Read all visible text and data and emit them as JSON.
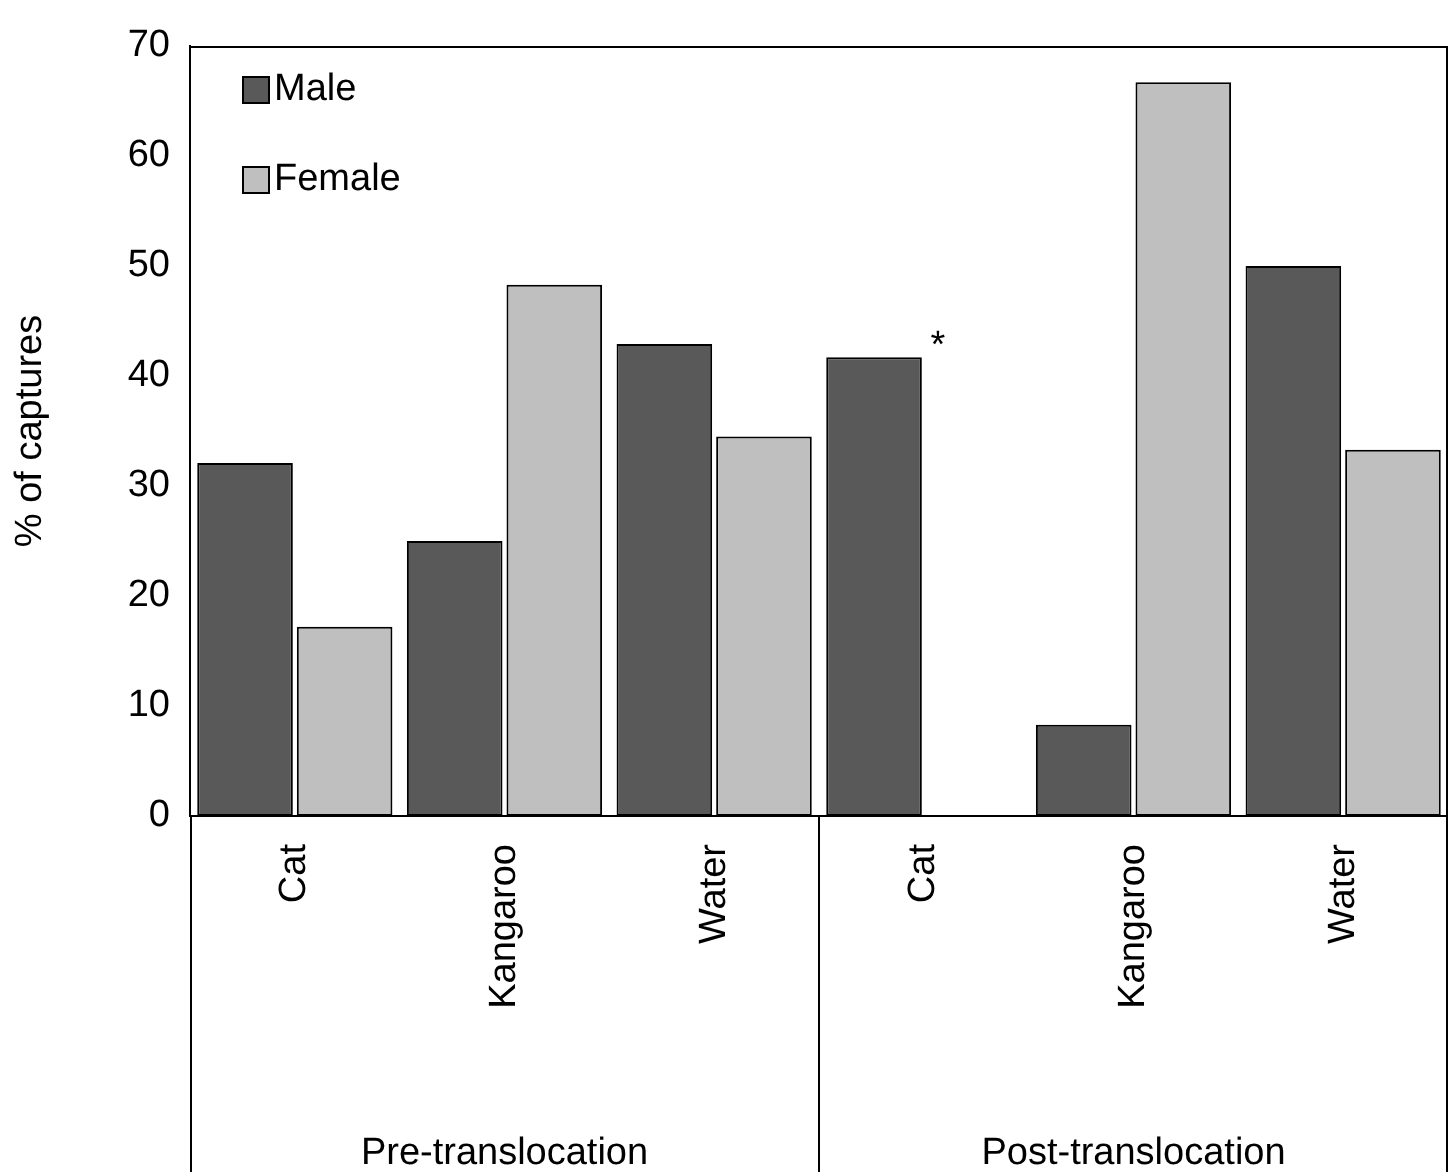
{
  "chart_data": {
    "type": "bar",
    "ylabel": "% of captures",
    "categories": [
      "Cat",
      "Kangaroo",
      "Water",
      "Cat",
      "Kangaroo",
      "Water"
    ],
    "series": [
      {
        "name": "Male",
        "color": "#595959",
        "values": [
          32.1,
          25.0,
          42.9,
          41.7,
          8.3,
          50.0
        ],
        "value_labels": [
          null,
          null,
          null,
          "*",
          null,
          null
        ]
      },
      {
        "name": "Female",
        "color": "#bfbfbf",
        "values": [
          17.2,
          48.3,
          34.5,
          0,
          66.7,
          33.3
        ]
      }
    ],
    "ylim": [
      0,
      70
    ],
    "yticks": [
      0,
      10,
      20,
      30,
      40,
      50,
      60,
      70
    ],
    "legend": "top left",
    "annotations": [
      "Pre-translocation",
      "Post-translocation"
    ]
  }
}
